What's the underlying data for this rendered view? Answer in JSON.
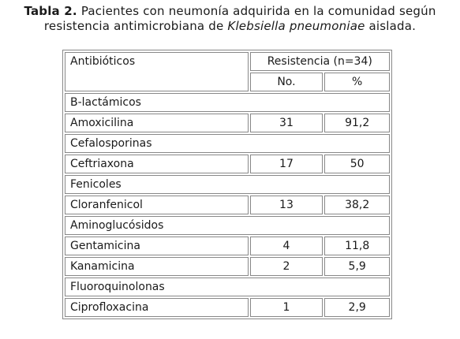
{
  "caption": {
    "label": "Tabla 2.",
    "text_before": "Pacientes con neumonía adquirida en la comunidad según",
    "text_line2_before": "resistencia antimicrobiana de",
    "italic": "Klebsiella pneumoniae",
    "text_after": "aislada."
  },
  "table": {
    "header": {
      "col1": "Antibióticos",
      "group": "Resistencia (n=34)",
      "sub_no": "No.",
      "sub_pct": "%"
    },
    "rows": [
      {
        "type": "group",
        "name": "B-lactámicos"
      },
      {
        "type": "item",
        "name": "Amoxicilina",
        "no": "31",
        "pct": "91,2"
      },
      {
        "type": "group",
        "name": "Cefalosporinas"
      },
      {
        "type": "item",
        "name": "Ceftriaxona",
        "no": "17",
        "pct": "50"
      },
      {
        "type": "group",
        "name": "Fenicoles"
      },
      {
        "type": "item",
        "name": "Cloranfenicol",
        "no": "13",
        "pct": "38,2"
      },
      {
        "type": "group",
        "name": "Aminoglucósidos"
      },
      {
        "type": "item",
        "name": "Gentamicina",
        "no": "4",
        "pct": "11,8"
      },
      {
        "type": "item",
        "name": "Kanamicina",
        "no": "2",
        "pct": "5,9"
      },
      {
        "type": "group",
        "name": "Fluoroquinolonas"
      },
      {
        "type": "item",
        "name": "Ciprofloxacina",
        "no": "1",
        "pct": "2,9"
      }
    ]
  }
}
